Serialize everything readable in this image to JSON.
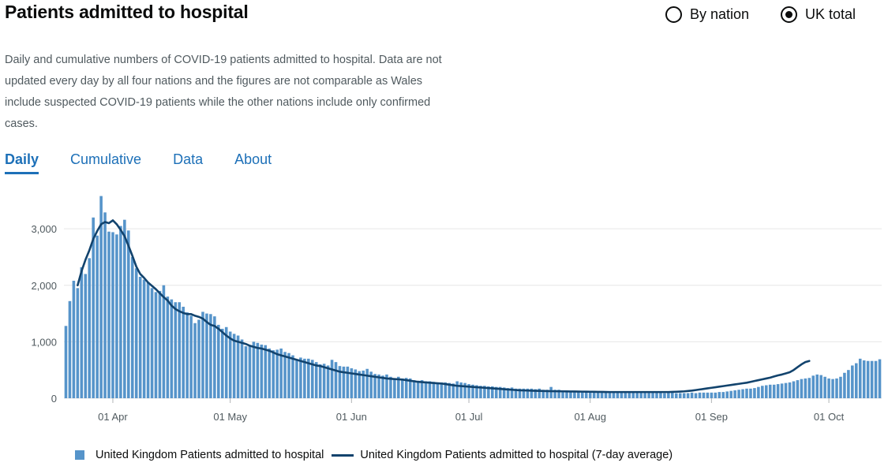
{
  "header": {
    "title": "Patients admitted to hospital",
    "toggle_by_nation": "By nation",
    "toggle_uk_total": "UK total",
    "selected_toggle": "UK total"
  },
  "description": "Daily and cumulative numbers of COVID-19 patients admitted to hospital. Data are not updated every day by all four nations and the figures are not comparable as Wales include suspected COVID-19 patients while the other nations include only confirmed cases.",
  "tabs": [
    {
      "label": "Daily",
      "active": true
    },
    {
      "label": "Cumulative",
      "active": false
    },
    {
      "label": "Data",
      "active": false
    },
    {
      "label": "About",
      "active": false
    }
  ],
  "colors": {
    "bar": "#5694ca",
    "line": "#12436d",
    "grid": "#e6e6e6",
    "link": "#1d70b8"
  },
  "chart_data": {
    "type": "bar",
    "title": "Patients admitted to hospital",
    "start_date": "2020-03-20",
    "ylim": [
      0,
      3700
    ],
    "yticks": [
      0,
      1000,
      2000,
      3000
    ],
    "ytick_labels": [
      "0",
      "1,000",
      "2,000",
      "3,000"
    ],
    "xtick_labels": [
      {
        "label": "01 Apr",
        "day_index": 12
      },
      {
        "label": "01 May",
        "day_index": 42
      },
      {
        "label": "01 Jun",
        "day_index": 73
      },
      {
        "label": "01 Jul",
        "day_index": 103
      },
      {
        "label": "01 Aug",
        "day_index": 134
      },
      {
        "label": "01 Sep",
        "day_index": 165
      },
      {
        "label": "01 Oct",
        "day_index": 195
      }
    ],
    "series": [
      {
        "name": "United Kingdom Patients admitted to hospital",
        "type": "bar",
        "values": [
          1280,
          1720,
          2080,
          1950,
          2320,
          2200,
          2480,
          3200,
          2880,
          3580,
          3290,
          2950,
          2940,
          2900,
          3050,
          3160,
          2970,
          2500,
          2300,
          2150,
          2100,
          2050,
          1950,
          1880,
          1900,
          2000,
          1800,
          1750,
          1700,
          1700,
          1620,
          1520,
          1460,
          1330,
          1390,
          1530,
          1500,
          1490,
          1450,
          1300,
          1230,
          1260,
          1180,
          1140,
          1110,
          1040,
          920,
          930,
          1000,
          980,
          950,
          940,
          880,
          850,
          860,
          880,
          820,
          800,
          760,
          680,
          720,
          700,
          700,
          680,
          640,
          600,
          610,
          580,
          680,
          640,
          570,
          560,
          560,
          530,
          510,
          480,
          490,
          520,
          470,
          430,
          420,
          400,
          420,
          380,
          340,
          380,
          350,
          360,
          350,
          320,
          310,
          320,
          300,
          300,
          290,
          280,
          280,
          280,
          270,
          260,
          300,
          280,
          270,
          250,
          240,
          230,
          220,
          220,
          210,
          210,
          200,
          200,
          190,
          180,
          190,
          170,
          170,
          170,
          170,
          170,
          160,
          170,
          150,
          150,
          200,
          150,
          150,
          140,
          130,
          120,
          120,
          120,
          130,
          120,
          120,
          110,
          110,
          110,
          110,
          110,
          110,
          110,
          110,
          110,
          110,
          100,
          100,
          100,
          100,
          100,
          100,
          100,
          100,
          90,
          100,
          100,
          90,
          90,
          90,
          90,
          100,
          90,
          100,
          100,
          100,
          100,
          100,
          110,
          110,
          120,
          130,
          140,
          150,
          160,
          170,
          170,
          180,
          200,
          220,
          230,
          240,
          240,
          250,
          260,
          270,
          280,
          300,
          320,
          340,
          350,
          360,
          400,
          420,
          410,
          380,
          350,
          340,
          350,
          380,
          450,
          500,
          580,
          620,
          700,
          670,
          660,
          660,
          660,
          690
        ]
      },
      {
        "name": "United Kingdom Patients admitted to hospital (7-day average)",
        "type": "line",
        "start_index": 3,
        "values": [
          2000,
          2250,
          2450,
          2620,
          2820,
          2960,
          3080,
          3120,
          3100,
          3150,
          3080,
          2980,
          2870,
          2700,
          2520,
          2330,
          2200,
          2130,
          2050,
          1990,
          1930,
          1860,
          1790,
          1730,
          1640,
          1580,
          1540,
          1510,
          1490,
          1490,
          1460,
          1440,
          1410,
          1350,
          1300,
          1280,
          1230,
          1170,
          1110,
          1060,
          1020,
          1000,
          980,
          960,
          930,
          910,
          890,
          880,
          860,
          840,
          810,
          780,
          760,
          740,
          720,
          700,
          680,
          660,
          640,
          620,
          600,
          580,
          570,
          550,
          530,
          510,
          490,
          470,
          460,
          450,
          440,
          430,
          420,
          410,
          400,
          390,
          380,
          370,
          360,
          350,
          345,
          340,
          335,
          330,
          320,
          310,
          300,
          290,
          285,
          280,
          275,
          270,
          265,
          260,
          250,
          240,
          230,
          220,
          215,
          210,
          205,
          200,
          195,
          190,
          185,
          180,
          175,
          170,
          165,
          160,
          155,
          150,
          145,
          140,
          138,
          136,
          134,
          132,
          130,
          128,
          126,
          125,
          124,
          123,
          122,
          121,
          120,
          119,
          118,
          117,
          116,
          115,
          114,
          113,
          112,
          111,
          110,
          110,
          110,
          110,
          110,
          110,
          110,
          110,
          110,
          110,
          110,
          110,
          110,
          110,
          110,
          110,
          112,
          115,
          118,
          122,
          128,
          135,
          145,
          155,
          165,
          175,
          185,
          195,
          205,
          215,
          225,
          235,
          245,
          255,
          265,
          275,
          290,
          305,
          320,
          335,
          350,
          365,
          385,
          405,
          420,
          440,
          460,
          500,
          550,
          600,
          640,
          660
        ]
      }
    ]
  },
  "legend": {
    "bar_label": "United Kingdom Patients admitted to hospital",
    "line_label": "United Kingdom Patients admitted to hospital (7-day average)"
  }
}
